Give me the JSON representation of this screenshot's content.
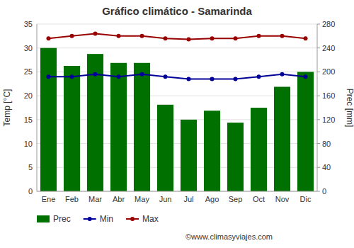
{
  "chart_data": {
    "type": "bar",
    "title": "Gráfico climático - Samarinda",
    "categories": [
      "Ene",
      "Feb",
      "Mar",
      "Abr",
      "May",
      "Jun",
      "Jul",
      "Ago",
      "Sep",
      "Oct",
      "Nov",
      "Dic"
    ],
    "series": [
      {
        "name": "Prec",
        "type": "bar",
        "axis": "y2",
        "color": "#007000",
        "values": [
          240,
          210,
          230,
          215,
          215,
          145,
          120,
          135,
          115,
          140,
          175,
          200
        ]
      },
      {
        "name": "Min",
        "type": "line",
        "color": "#000099",
        "marker": "circle",
        "line_style": "solid",
        "values": [
          24.0,
          24.0,
          24.5,
          24.0,
          24.5,
          24.0,
          23.5,
          23.5,
          23.5,
          24.0,
          24.5,
          24.0
        ]
      },
      {
        "name": "Max",
        "type": "line",
        "color": "#990000",
        "marker": "circle",
        "line_style": "solid",
        "values": [
          32.0,
          32.5,
          33.0,
          32.5,
          32.5,
          32.0,
          31.8,
          32.0,
          32.0,
          32.5,
          32.5,
          32.0
        ]
      }
    ],
    "ylabel": "Temp [°C]",
    "y2label": "Prec [mm]",
    "ylim": [
      0,
      35
    ],
    "yticks": [
      0,
      5,
      10,
      15,
      20,
      25,
      30,
      35
    ],
    "y2lim": [
      0,
      280
    ],
    "y2ticks": [
      0,
      40,
      80,
      120,
      160,
      200,
      240,
      280
    ],
    "grid": true,
    "legend": "bottom",
    "annotations": [
      "©www.climasyviajes.com"
    ]
  }
}
